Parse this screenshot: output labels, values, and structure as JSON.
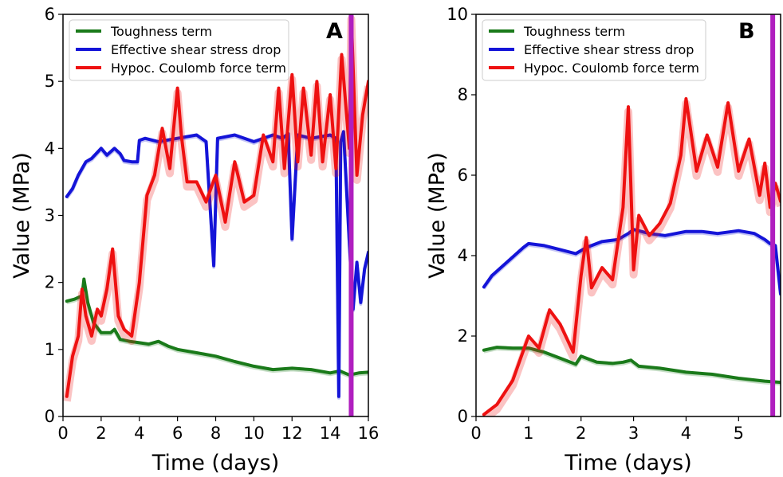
{
  "chart_data": [
    {
      "type": "line",
      "panel_label": "A",
      "xlabel": "Time (days)",
      "ylabel": "Value (MPa)",
      "xlim": [
        0,
        16
      ],
      "ylim": [
        0,
        6
      ],
      "xticks": [
        0,
        2,
        4,
        6,
        8,
        10,
        12,
        14,
        16
      ],
      "yticks": [
        0,
        1,
        2,
        3,
        4,
        5,
        6
      ],
      "grid": false,
      "legend_position": "top-left",
      "vline": {
        "x": 15.1,
        "color": "#b01fbf"
      },
      "series": [
        {
          "name": "Toughness term",
          "color": "#1a7a1a",
          "x": [
            0.2,
            0.6,
            1.0,
            1.1,
            1.3,
            1.6,
            2.0,
            2.5,
            2.7,
            3.0,
            3.5,
            4.0,
            4.5,
            5.0,
            5.5,
            6.0,
            7.0,
            8.0,
            9.0,
            10.0,
            11.0,
            12.0,
            13.0,
            14.0,
            14.5,
            15.0,
            15.5,
            16.0
          ],
          "y": [
            1.72,
            1.75,
            1.8,
            2.05,
            1.7,
            1.4,
            1.25,
            1.25,
            1.3,
            1.15,
            1.12,
            1.1,
            1.08,
            1.12,
            1.05,
            1.0,
            0.95,
            0.9,
            0.82,
            0.75,
            0.7,
            0.72,
            0.7,
            0.65,
            0.68,
            0.62,
            0.65,
            0.66
          ]
        },
        {
          "name": "Effective shear stress drop",
          "color": "#1414d8",
          "x": [
            0.2,
            0.5,
            0.8,
            1.2,
            1.5,
            2.0,
            2.3,
            2.7,
            3.0,
            3.2,
            3.6,
            3.9,
            4.0,
            4.3,
            5.0,
            6.0,
            7.0,
            7.5,
            7.9,
            8.1,
            9.0,
            10.0,
            11.0,
            11.5,
            11.8,
            12.0,
            12.3,
            13.0,
            14.0,
            14.3,
            14.45,
            14.55,
            14.7,
            15.0,
            15.2,
            15.4,
            15.6,
            15.8,
            16.0
          ],
          "y": [
            3.28,
            3.4,
            3.6,
            3.8,
            3.85,
            4.0,
            3.9,
            4.0,
            3.92,
            3.82,
            3.8,
            3.8,
            4.12,
            4.15,
            4.1,
            4.15,
            4.2,
            4.1,
            2.25,
            4.15,
            4.2,
            4.1,
            4.2,
            4.15,
            4.22,
            2.65,
            4.2,
            4.15,
            4.2,
            4.15,
            0.3,
            4.1,
            4.25,
            2.6,
            1.6,
            2.3,
            1.7,
            2.2,
            2.45
          ]
        },
        {
          "name": "Hypoc. Coulomb force term",
          "color": "#ee1111",
          "x": [
            0.2,
            0.5,
            0.8,
            1.0,
            1.2,
            1.5,
            1.8,
            2.0,
            2.3,
            2.6,
            2.9,
            3.2,
            3.6,
            4.0,
            4.4,
            4.8,
            5.2,
            5.6,
            6.0,
            6.2,
            6.5,
            7.0,
            7.5,
            8.0,
            8.5,
            9.0,
            9.5,
            10.0,
            10.5,
            11.0,
            11.3,
            11.6,
            12.0,
            12.3,
            12.6,
            13.0,
            13.3,
            13.6,
            14.0,
            14.3,
            14.6,
            15.0,
            15.1,
            15.4,
            15.7,
            16.0
          ],
          "y": [
            0.3,
            0.9,
            1.2,
            1.9,
            1.5,
            1.2,
            1.6,
            1.5,
            1.9,
            2.5,
            1.5,
            1.3,
            1.2,
            2.0,
            3.3,
            3.6,
            4.3,
            3.7,
            4.9,
            4.2,
            3.5,
            3.5,
            3.2,
            3.6,
            2.9,
            3.8,
            3.2,
            3.3,
            4.2,
            3.8,
            4.9,
            3.7,
            5.1,
            3.8,
            4.9,
            3.9,
            5.0,
            3.8,
            4.8,
            3.7,
            5.4,
            4.0,
            6.0,
            3.6,
            4.5,
            5.0
          ]
        }
      ]
    },
    {
      "type": "line",
      "panel_label": "B",
      "xlabel": "Time (days)",
      "ylabel": "Value (MPa)",
      "xlim": [
        0,
        5.8
      ],
      "ylim": [
        0,
        10
      ],
      "xticks": [
        0,
        1,
        2,
        3,
        4,
        5
      ],
      "yticks": [
        0,
        2,
        4,
        6,
        8,
        10
      ],
      "grid": false,
      "legend_position": "top-left",
      "vline": {
        "x": 5.65,
        "color": "#b01fbf"
      },
      "series": [
        {
          "name": "Toughness term",
          "color": "#1a7a1a",
          "x": [
            0.15,
            0.4,
            0.7,
            1.0,
            1.3,
            1.6,
            1.9,
            2.0,
            2.3,
            2.6,
            2.8,
            2.95,
            3.1,
            3.5,
            4.0,
            4.5,
            5.0,
            5.5,
            5.8
          ],
          "y": [
            1.65,
            1.72,
            1.7,
            1.7,
            1.6,
            1.45,
            1.3,
            1.5,
            1.35,
            1.32,
            1.35,
            1.4,
            1.25,
            1.2,
            1.1,
            1.05,
            0.95,
            0.88,
            0.85
          ]
        },
        {
          "name": "Effective shear stress drop",
          "color": "#1414d8",
          "x": [
            0.15,
            0.3,
            0.6,
            0.9,
            1.0,
            1.3,
            1.6,
            1.9,
            2.1,
            2.4,
            2.7,
            2.9,
            3.0,
            3.3,
            3.6,
            4.0,
            4.3,
            4.6,
            5.0,
            5.3,
            5.5,
            5.6,
            5.7,
            5.8
          ],
          "y": [
            3.22,
            3.5,
            3.85,
            4.2,
            4.3,
            4.25,
            4.15,
            4.05,
            4.2,
            4.35,
            4.4,
            4.55,
            4.65,
            4.55,
            4.5,
            4.6,
            4.6,
            4.55,
            4.62,
            4.55,
            4.4,
            4.3,
            4.25,
            3.05
          ]
        },
        {
          "name": "Hypoc. Coulomb force term",
          "color": "#ee1111",
          "x": [
            0.15,
            0.4,
            0.7,
            1.0,
            1.2,
            1.4,
            1.6,
            1.85,
            2.0,
            2.1,
            2.2,
            2.4,
            2.6,
            2.8,
            2.9,
            3.0,
            3.1,
            3.3,
            3.5,
            3.7,
            3.9,
            4.0,
            4.2,
            4.4,
            4.6,
            4.8,
            5.0,
            5.2,
            5.4,
            5.5,
            5.6,
            5.7,
            5.8
          ],
          "y": [
            0.05,
            0.3,
            0.9,
            2.0,
            1.7,
            2.65,
            2.3,
            1.6,
            3.5,
            4.45,
            3.2,
            3.7,
            3.4,
            5.2,
            7.7,
            3.65,
            5.0,
            4.5,
            4.8,
            5.3,
            6.5,
            7.9,
            6.1,
            7.0,
            6.2,
            7.8,
            6.1,
            6.9,
            5.5,
            6.3,
            5.2,
            5.8,
            5.35
          ]
        }
      ]
    }
  ]
}
